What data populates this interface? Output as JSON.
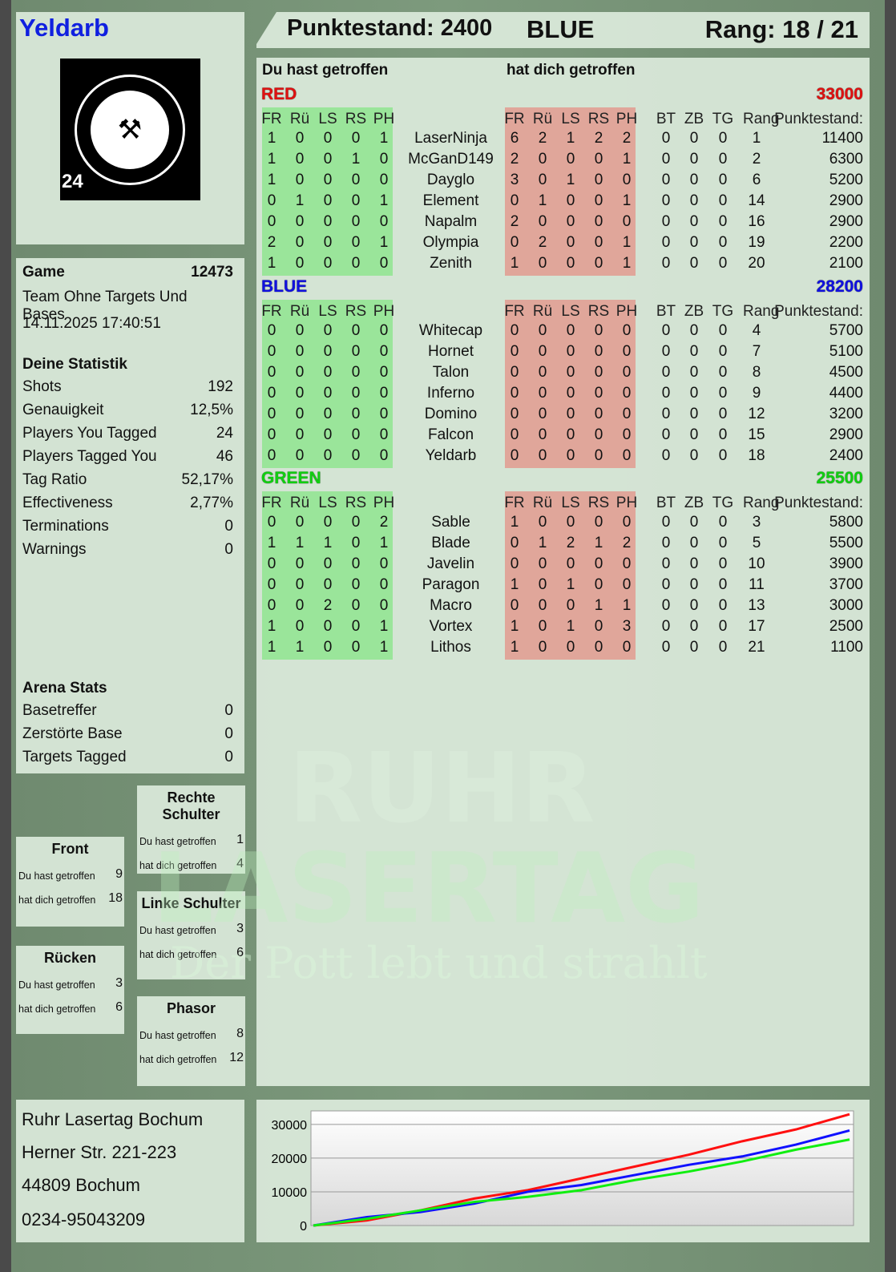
{
  "player": {
    "name": "Yeldarb",
    "logo_text": "RUHR LASERTAG",
    "logo_number": "24"
  },
  "header": {
    "score_label": "Punktestand: 2400",
    "team": "BLUE",
    "rank_label": "Rang: 18 / 21"
  },
  "game": {
    "label": "Game",
    "number": "12473",
    "mode": "Team Ohne Targets Und Bases",
    "datetime": "14.11.2025 17:40:51"
  },
  "stats": {
    "title": "Deine Statistik",
    "items": [
      {
        "label": "Shots",
        "value": "192"
      },
      {
        "label": "Genauigkeit",
        "value": "12,5%"
      },
      {
        "label": "Players You Tagged",
        "value": "24"
      },
      {
        "label": "Players Tagged You",
        "value": "46"
      },
      {
        "label": "Tag Ratio",
        "value": "52,17%"
      },
      {
        "label": "Effectiveness",
        "value": "2,77%"
      },
      {
        "label": "Terminations",
        "value": "0"
      },
      {
        "label": "Warnings",
        "value": "0"
      }
    ]
  },
  "arena": {
    "title": "Arena Stats",
    "items": [
      {
        "label": "Basetreffer",
        "value": "0"
      },
      {
        "label": "Zerstörte Base",
        "value": "0"
      },
      {
        "label": "Targets Tagged",
        "value": "0"
      }
    ]
  },
  "zones": [
    {
      "title": "Rechte Schulter",
      "you_hit_label": "Du hast getroffen",
      "you_hit": "1",
      "hit_you_label": "hat dich getroffen",
      "hit_you": "4"
    },
    {
      "title": "Front",
      "you_hit_label": "Du hast getroffen",
      "you_hit": "9",
      "hit_you_label": "hat dich getroffen",
      "hit_you": "18"
    },
    {
      "title": "Linke Schulter",
      "you_hit_label": "Du hast getroffen",
      "you_hit": "3",
      "hit_you_label": "hat dich getroffen",
      "hit_you": "6"
    },
    {
      "title": "Rücken",
      "you_hit_label": "Du hast getroffen",
      "you_hit": "3",
      "hit_you_label": "hat dich getroffen",
      "hit_you": "6"
    },
    {
      "title": "Phasor",
      "you_hit_label": "Du hast getroffen",
      "you_hit": "8",
      "hit_you_label": "hat dich getroffen",
      "hit_you": "12"
    }
  ],
  "address": {
    "line1": "Ruhr Lasertag Bochum",
    "line2": "Herner Str. 221-223",
    "line3": "44809 Bochum",
    "phone": "0234-95043209"
  },
  "watermark": {
    "line1": "RUHR",
    "line2": "LASERTAG",
    "slogan": "Der Pott lebt und strahlt"
  },
  "table": {
    "you_hit_label": "Du hast getroffen",
    "hit_you_label": "hat dich getroffen",
    "hit_cols": [
      "FR",
      "Rü",
      "LS",
      "RS",
      "PH"
    ],
    "stat_cols": [
      "BT",
      "ZB",
      "TG",
      "Rang",
      "Punktestand:"
    ],
    "teams": [
      {
        "name": "RED",
        "score": "33000",
        "color": "#e01010",
        "players": [
          {
            "name": "LaserNinja",
            "you_hit": [
              1,
              0,
              0,
              0,
              1
            ],
            "hit_you": [
              6,
              2,
              1,
              2,
              2
            ],
            "stats": [
              0,
              0,
              0,
              1,
              11400
            ]
          },
          {
            "name": "McGanD149",
            "you_hit": [
              1,
              0,
              0,
              1,
              0
            ],
            "hit_you": [
              2,
              0,
              0,
              0,
              1
            ],
            "stats": [
              0,
              0,
              0,
              2,
              6300
            ]
          },
          {
            "name": "Dayglo",
            "you_hit": [
              1,
              0,
              0,
              0,
              0
            ],
            "hit_you": [
              3,
              0,
              1,
              0,
              0
            ],
            "stats": [
              0,
              0,
              0,
              6,
              5200
            ]
          },
          {
            "name": "Element",
            "you_hit": [
              0,
              1,
              0,
              0,
              1
            ],
            "hit_you": [
              0,
              1,
              0,
              0,
              1
            ],
            "stats": [
              0,
              0,
              0,
              14,
              2900
            ]
          },
          {
            "name": "Napalm",
            "you_hit": [
              0,
              0,
              0,
              0,
              0
            ],
            "hit_you": [
              2,
              0,
              0,
              0,
              0
            ],
            "stats": [
              0,
              0,
              0,
              16,
              2900
            ]
          },
          {
            "name": "Olympia",
            "you_hit": [
              2,
              0,
              0,
              0,
              1
            ],
            "hit_you": [
              0,
              2,
              0,
              0,
              1
            ],
            "stats": [
              0,
              0,
              0,
              19,
              2200
            ]
          },
          {
            "name": "Zenith",
            "you_hit": [
              1,
              0,
              0,
              0,
              0
            ],
            "hit_you": [
              1,
              0,
              0,
              0,
              1
            ],
            "stats": [
              0,
              0,
              0,
              20,
              2100
            ]
          }
        ]
      },
      {
        "name": "BLUE",
        "score": "28200",
        "color": "#1010e0",
        "players": [
          {
            "name": "Whitecap",
            "you_hit": [
              0,
              0,
              0,
              0,
              0
            ],
            "hit_you": [
              0,
              0,
              0,
              0,
              0
            ],
            "stats": [
              0,
              0,
              0,
              4,
              5700
            ]
          },
          {
            "name": "Hornet",
            "you_hit": [
              0,
              0,
              0,
              0,
              0
            ],
            "hit_you": [
              0,
              0,
              0,
              0,
              0
            ],
            "stats": [
              0,
              0,
              0,
              7,
              5100
            ]
          },
          {
            "name": "Talon",
            "you_hit": [
              0,
              0,
              0,
              0,
              0
            ],
            "hit_you": [
              0,
              0,
              0,
              0,
              0
            ],
            "stats": [
              0,
              0,
              0,
              8,
              4500
            ]
          },
          {
            "name": "Inferno",
            "you_hit": [
              0,
              0,
              0,
              0,
              0
            ],
            "hit_you": [
              0,
              0,
              0,
              0,
              0
            ],
            "stats": [
              0,
              0,
              0,
              9,
              4400
            ]
          },
          {
            "name": "Domino",
            "you_hit": [
              0,
              0,
              0,
              0,
              0
            ],
            "hit_you": [
              0,
              0,
              0,
              0,
              0
            ],
            "stats": [
              0,
              0,
              0,
              12,
              3200
            ]
          },
          {
            "name": "Falcon",
            "you_hit": [
              0,
              0,
              0,
              0,
              0
            ],
            "hit_you": [
              0,
              0,
              0,
              0,
              0
            ],
            "stats": [
              0,
              0,
              0,
              15,
              2900
            ]
          },
          {
            "name": "Yeldarb",
            "you_hit": [
              0,
              0,
              0,
              0,
              0
            ],
            "hit_you": [
              0,
              0,
              0,
              0,
              0
            ],
            "stats": [
              0,
              0,
              0,
              18,
              2400
            ]
          }
        ]
      },
      {
        "name": "GREEN",
        "score": "25500",
        "color": "#10d010",
        "players": [
          {
            "name": "Sable",
            "you_hit": [
              0,
              0,
              0,
              0,
              2
            ],
            "hit_you": [
              1,
              0,
              0,
              0,
              0
            ],
            "stats": [
              0,
              0,
              0,
              3,
              5800
            ]
          },
          {
            "name": "Blade",
            "you_hit": [
              1,
              1,
              1,
              0,
              1
            ],
            "hit_you": [
              0,
              1,
              2,
              1,
              2
            ],
            "stats": [
              0,
              0,
              0,
              5,
              5500
            ]
          },
          {
            "name": "Javelin",
            "you_hit": [
              0,
              0,
              0,
              0,
              0
            ],
            "hit_you": [
              0,
              0,
              0,
              0,
              0
            ],
            "stats": [
              0,
              0,
              0,
              10,
              3900
            ]
          },
          {
            "name": "Paragon",
            "you_hit": [
              0,
              0,
              0,
              0,
              0
            ],
            "hit_you": [
              1,
              0,
              1,
              0,
              0
            ],
            "stats": [
              0,
              0,
              0,
              11,
              3700
            ]
          },
          {
            "name": "Macro",
            "you_hit": [
              0,
              0,
              2,
              0,
              0
            ],
            "hit_you": [
              0,
              0,
              0,
              1,
              1
            ],
            "stats": [
              0,
              0,
              0,
              13,
              3000
            ]
          },
          {
            "name": "Vortex",
            "you_hit": [
              1,
              0,
              0,
              0,
              1
            ],
            "hit_you": [
              1,
              0,
              1,
              0,
              3
            ],
            "stats": [
              0,
              0,
              0,
              17,
              2500
            ]
          },
          {
            "name": "Lithos",
            "you_hit": [
              1,
              1,
              0,
              0,
              1
            ],
            "hit_you": [
              1,
              0,
              0,
              0,
              0
            ],
            "stats": [
              0,
              0,
              0,
              21,
              1100
            ]
          }
        ]
      }
    ]
  },
  "chart_data": {
    "type": "line",
    "yticks": [
      "0",
      "10000",
      "20000",
      "30000"
    ],
    "ylim": [
      0,
      34000
    ],
    "grid": true,
    "series": [
      {
        "color": "#ff1010",
        "values": [
          0,
          1500,
          4500,
          8000,
          10500,
          14000,
          17500,
          21000,
          25000,
          28500,
          33000
        ]
      },
      {
        "color": "#1010ff",
        "values": [
          0,
          2500,
          4000,
          6500,
          10000,
          12000,
          15000,
          18000,
          20500,
          24000,
          28200
        ]
      },
      {
        "color": "#10ee10",
        "values": [
          0,
          2000,
          4500,
          7000,
          8500,
          10500,
          13500,
          16000,
          19000,
          22500,
          25500
        ]
      }
    ]
  }
}
